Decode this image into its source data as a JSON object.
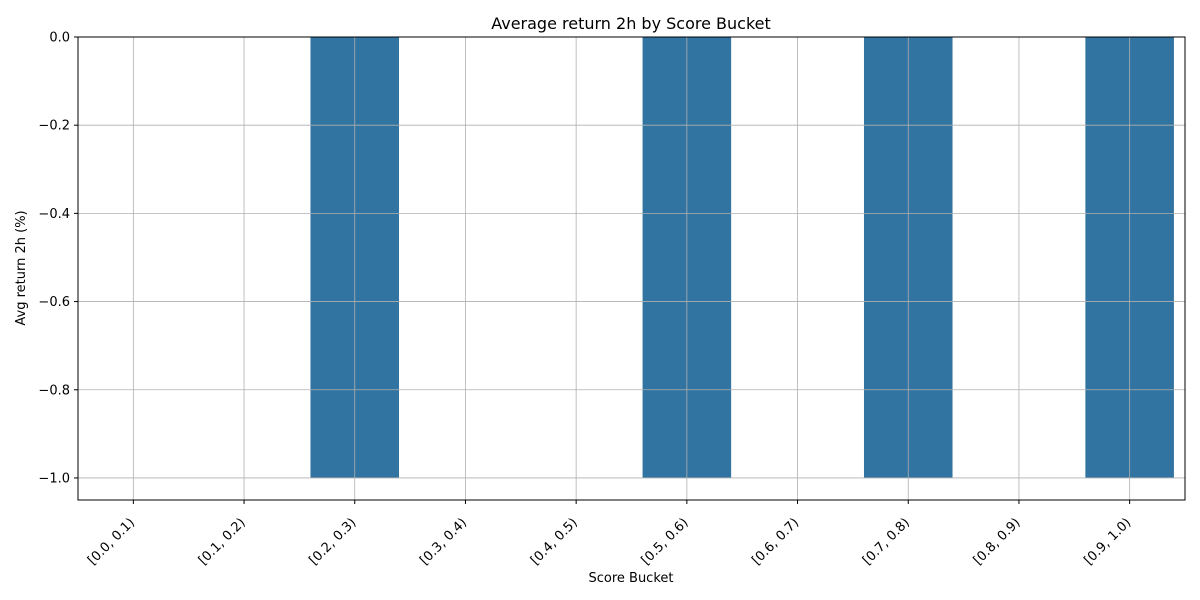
{
  "chart_data": {
    "type": "bar",
    "title": "Average return 2h by Score Bucket",
    "xlabel": "Score Bucket",
    "ylabel": "Avg return 2h (%)",
    "categories": [
      "[0.0, 0.1)",
      "[0.1, 0.2)",
      "[0.2, 0.3)",
      "[0.3, 0.4)",
      "[0.4, 0.5)",
      "[0.5, 0.6)",
      "[0.6, 0.7)",
      "[0.7, 0.8)",
      "[0.8, 0.9)",
      "[0.9, 1.0)"
    ],
    "values": [
      null,
      null,
      -1.0,
      null,
      null,
      -1.0,
      null,
      -1.0,
      null,
      -1.0
    ],
    "ylim": [
      -1.05,
      0.0
    ],
    "yticks": [
      0.0,
      -0.2,
      -0.4,
      -0.6,
      -0.8,
      -1.0
    ],
    "ytick_labels": [
      "0.0",
      "−0.2",
      "−0.4",
      "−0.6",
      "−0.8",
      "−1.0"
    ],
    "grid": true,
    "bar_color": "#3274a1"
  }
}
